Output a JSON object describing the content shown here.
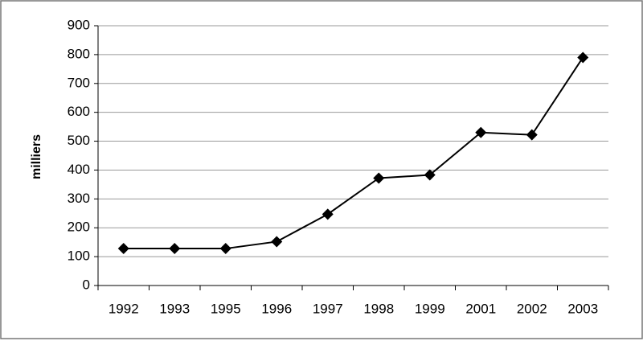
{
  "chart_data": {
    "type": "line",
    "ylabel": "milliers",
    "categories": [
      "1992",
      "1993",
      "1995",
      "1996",
      "1997",
      "1998",
      "1999",
      "2001",
      "2002",
      "2003"
    ],
    "values": [
      128,
      128,
      128,
      152,
      247,
      372,
      383,
      530,
      522,
      790
    ],
    "color": "#000000",
    "ylim": [
      0,
      900
    ],
    "yticks": [
      0,
      100,
      200,
      300,
      400,
      500,
      600,
      700,
      800,
      900
    ],
    "grid": true
  }
}
